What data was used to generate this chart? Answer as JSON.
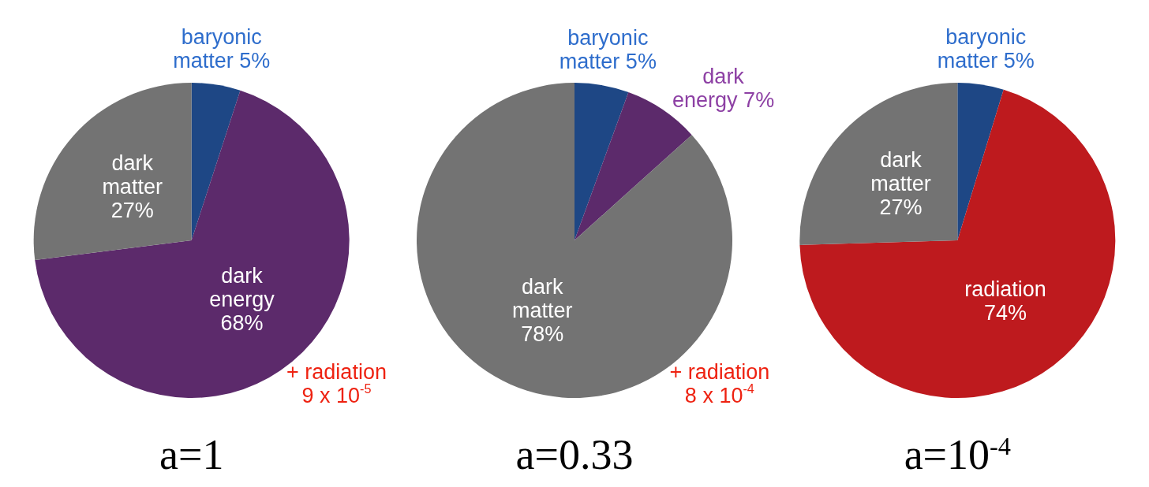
{
  "chart_data": [
    {
      "type": "pie",
      "title": "a=1",
      "categories": [
        "baryonic matter",
        "dark energy",
        "dark matter"
      ],
      "values": [
        5,
        68,
        27
      ],
      "value_labels": [
        "5%",
        "68%",
        "27%"
      ],
      "colors": [
        "#1e4785",
        "#5c2a6b",
        "#737373"
      ],
      "annotations": [
        "+ radiation 9 x 10$^{-5}$"
      ]
    },
    {
      "type": "pie",
      "title": "a=0.33",
      "categories": [
        "baryonic matter",
        "dark energy",
        "dark matter"
      ],
      "values": [
        5,
        7,
        78
      ],
      "value_labels": [
        "5%",
        "7%",
        "78%"
      ],
      "colors": [
        "#1e4785",
        "#5c2a6b",
        "#737373"
      ],
      "annotations": [
        "+ radiation 8 x 10$^{-4}$"
      ]
    },
    {
      "type": "pie",
      "title": "a=10$^{-4}$",
      "categories": [
        "baryonic matter",
        "radiation",
        "dark matter"
      ],
      "values": [
        5,
        74,
        27
      ],
      "value_labels": [
        "5%",
        "74%",
        "27%"
      ],
      "colors": [
        "#1e4785",
        "#be1a1e",
        "#737373"
      ]
    }
  ]
}
